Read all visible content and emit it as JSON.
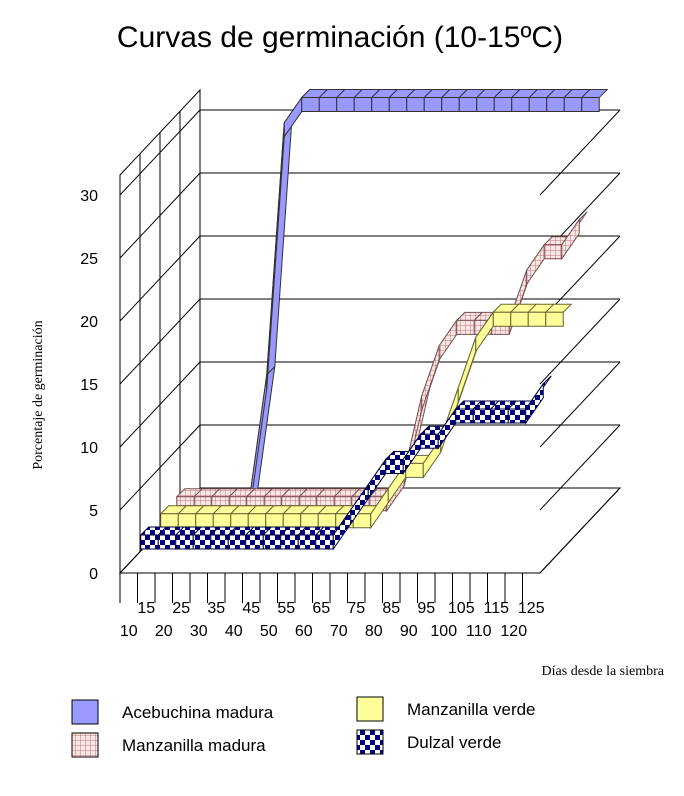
{
  "chart_data": {
    "type": "line",
    "title": "Curvas de germinación (10-15ºC)",
    "xlabel": "Días desde la siembra",
    "ylabel": "Porcentaje de germinación",
    "ylim": [
      0,
      30
    ],
    "yticks": [
      "0",
      "5",
      "10",
      "15",
      "20",
      "25",
      "30"
    ],
    "categories": [
      "10",
      "15",
      "20",
      "25",
      "30",
      "35",
      "40",
      "45",
      "50",
      "55",
      "60",
      "65",
      "70",
      "75",
      "80",
      "85",
      "90",
      "95",
      "100",
      "105",
      "110",
      "115",
      "120",
      "125"
    ],
    "grid": true,
    "legend_position": "bottom",
    "series": [
      {
        "name": "Acebuchina madura",
        "color": "#9999ff",
        "pattern": "solid",
        "values": [
          0,
          0,
          0,
          0,
          10,
          30,
          32,
          32,
          32,
          32,
          32,
          32,
          32,
          32,
          32,
          32,
          32,
          32,
          32,
          32,
          32,
          32,
          32,
          32
        ]
      },
      {
        "name": "Manzanilla madura",
        "color": "#ffcccc",
        "pattern": "grid",
        "values": [
          2,
          2,
          2,
          2,
          2,
          2,
          2,
          2,
          2,
          2,
          2,
          2,
          2,
          4,
          10,
          14,
          16,
          16,
          16,
          16,
          20,
          22,
          22,
          24
        ]
      },
      {
        "name": "Manzanilla verde",
        "color": "#ffff99",
        "pattern": "solid",
        "values": [
          2,
          2,
          2,
          2,
          2,
          2,
          2,
          2,
          2,
          2,
          2,
          2,
          2,
          4,
          6,
          6,
          8,
          12,
          16,
          18,
          18,
          18,
          18,
          18
        ]
      },
      {
        "name": "Dulzal verde",
        "color": "#000080",
        "pattern": "checker",
        "values": [
          2,
          2,
          2,
          2,
          2,
          2,
          2,
          2,
          2,
          2,
          2,
          2,
          4,
          6,
          8,
          8,
          10,
          10,
          12,
          12,
          12,
          12,
          12,
          14
        ]
      }
    ]
  }
}
